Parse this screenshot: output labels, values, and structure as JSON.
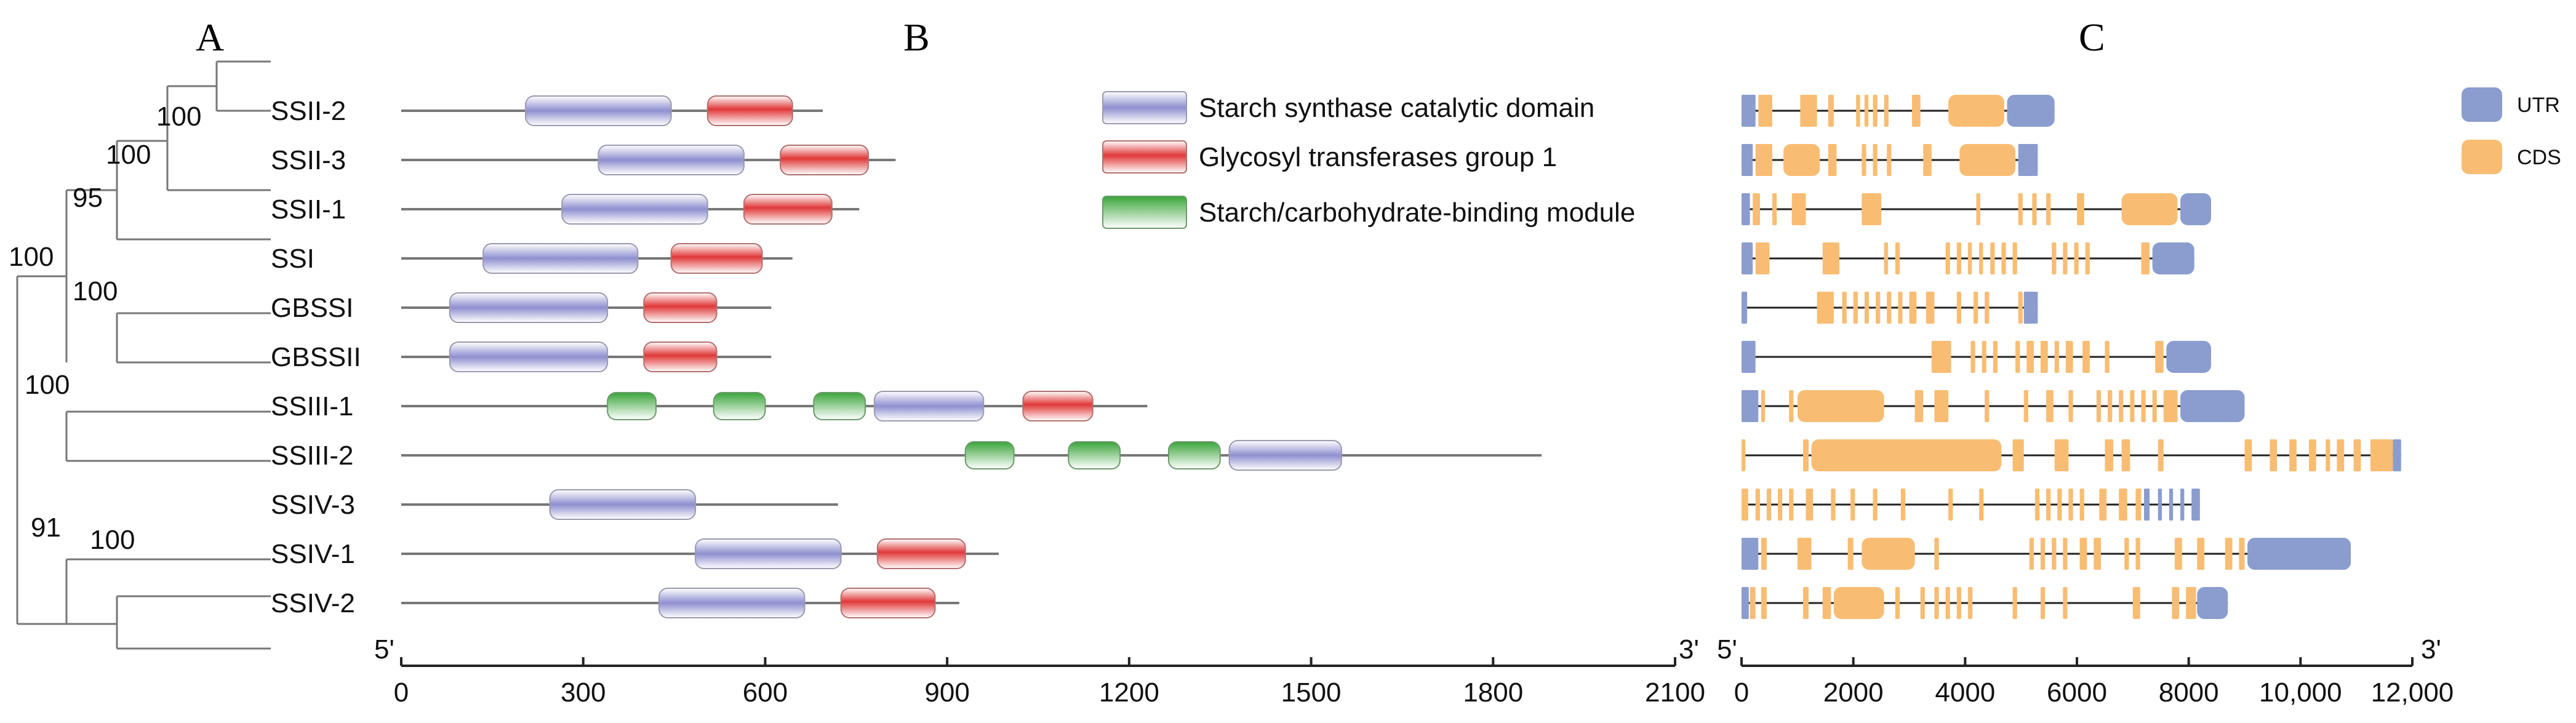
{
  "panels": {
    "a": "A",
    "b": "B",
    "c": "C"
  },
  "tree": {
    "bootstraps": [
      {
        "id": "ssii23",
        "value": "100"
      },
      {
        "id": "ssii",
        "value": "100"
      },
      {
        "id": "ss1",
        "value": "95"
      },
      {
        "id": "root",
        "value": "100"
      },
      {
        "id": "gbss",
        "value": "100"
      },
      {
        "id": "ssiii",
        "value": "100"
      },
      {
        "id": "ssiv",
        "value": "91"
      },
      {
        "id": "ssiv12",
        "value": "100"
      }
    ]
  },
  "genes": [
    "SSII-2",
    "SSII-3",
    "SSII-1",
    "SSI",
    "GBSSI",
    "GBSSII",
    "SSIII-1",
    "SSIII-2",
    "SSIV-3",
    "SSIV-1",
    "SSIV-2"
  ],
  "domains": {
    "axis": {
      "start_label": "5'",
      "end_label": "3'",
      "min": 0,
      "max": 2100,
      "ticks": [
        0,
        300,
        600,
        900,
        1200,
        1500,
        1800,
        2100
      ]
    },
    "legend": [
      {
        "key": "catalytic",
        "label": "Starch synthase catalytic domain",
        "color": "#8f8fd0"
      },
      {
        "key": "glycosyl",
        "label": "Glycosyl transferases group 1",
        "color": "#e03838"
      },
      {
        "key": "cbm",
        "label": "Starch/carbohydrate-binding module",
        "color": "#3aa43a"
      }
    ],
    "proteins": [
      {
        "gene": "SSII-2",
        "length": 695,
        "domains": [
          {
            "type": "catalytic",
            "start": 205,
            "end": 445
          },
          {
            "type": "glycosyl",
            "start": 505,
            "end": 645
          }
        ]
      },
      {
        "gene": "SSII-3",
        "length": 815,
        "domains": [
          {
            "type": "catalytic",
            "start": 325,
            "end": 565
          },
          {
            "type": "glycosyl",
            "start": 625,
            "end": 770
          }
        ]
      },
      {
        "gene": "SSII-1",
        "length": 755,
        "domains": [
          {
            "type": "catalytic",
            "start": 265,
            "end": 505
          },
          {
            "type": "glycosyl",
            "start": 565,
            "end": 710
          }
        ]
      },
      {
        "gene": "SSI",
        "length": 645,
        "domains": [
          {
            "type": "catalytic",
            "start": 135,
            "end": 390
          },
          {
            "type": "glycosyl",
            "start": 445,
            "end": 595
          }
        ]
      },
      {
        "gene": "GBSSI",
        "length": 610,
        "domains": [
          {
            "type": "catalytic",
            "start": 80,
            "end": 340
          },
          {
            "type": "glycosyl",
            "start": 400,
            "end": 520
          }
        ]
      },
      {
        "gene": "GBSSII",
        "length": 610,
        "domains": [
          {
            "type": "catalytic",
            "start": 80,
            "end": 340
          },
          {
            "type": "glycosyl",
            "start": 400,
            "end": 520
          }
        ]
      },
      {
        "gene": "SSIII-1",
        "length": 1230,
        "domains": [
          {
            "type": "cbm",
            "start": 340,
            "end": 420
          },
          {
            "type": "cbm",
            "start": 515,
            "end": 600
          },
          {
            "type": "cbm",
            "start": 680,
            "end": 765
          },
          {
            "type": "catalytic",
            "start": 780,
            "end": 960
          },
          {
            "type": "glycosyl",
            "start": 1025,
            "end": 1140
          }
        ]
      },
      {
        "gene": "SSIII-2",
        "length": 1880,
        "domains": [
          {
            "type": "cbm",
            "start": 930,
            "end": 1010
          },
          {
            "type": "cbm",
            "start": 1100,
            "end": 1185
          },
          {
            "type": "cbm",
            "start": 1265,
            "end": 1350
          },
          {
            "type": "catalytic",
            "start": 1365,
            "end": 1550
          }
        ]
      },
      {
        "gene": "SSIV-3",
        "length": 720,
        "domains": [
          {
            "type": "catalytic",
            "start": 245,
            "end": 485
          }
        ]
      },
      {
        "gene": "SSIV-1",
        "length": 985,
        "domains": [
          {
            "type": "catalytic",
            "start": 485,
            "end": 725
          },
          {
            "type": "glycosyl",
            "start": 785,
            "end": 930
          }
        ]
      },
      {
        "gene": "SSIV-2",
        "length": 920,
        "domains": [
          {
            "type": "catalytic",
            "start": 425,
            "end": 665
          },
          {
            "type": "glycosyl",
            "start": 725,
            "end": 880
          }
        ]
      }
    ]
  },
  "gene_structure": {
    "axis": {
      "start_label": "5'",
      "end_label": "3'",
      "min": 0,
      "max": 12000,
      "ticks": [
        0,
        2000,
        4000,
        6000,
        8000,
        10000,
        12000
      ],
      "tick_labels": [
        "0",
        "2000",
        "4000",
        "6000",
        "8000",
        "10,000",
        "12,000"
      ]
    },
    "legend": [
      {
        "key": "utr",
        "label": "UTR",
        "color": "#8b9dcf"
      },
      {
        "key": "cds",
        "label": "CDS",
        "color": "#f8bd73"
      }
    ],
    "genes": [
      {
        "gene": "SSII-2",
        "length": 5600,
        "utr": [
          [
            0,
            250
          ],
          [
            4750,
            5600
          ]
        ],
        "cds": [
          [
            300,
            550
          ],
          [
            1050,
            1350
          ],
          [
            1550,
            1650
          ],
          [
            2050,
            2120
          ],
          [
            2200,
            2270
          ],
          [
            2350,
            2430
          ],
          [
            2550,
            2630
          ],
          [
            3050,
            3200
          ],
          [
            3700,
            4700
          ]
        ]
      },
      {
        "gene": "SSII-3",
        "length": 5300,
        "utr": [
          [
            0,
            200
          ],
          [
            4950,
            5300
          ]
        ],
        "cds": [
          [
            250,
            550
          ],
          [
            750,
            1400
          ],
          [
            1550,
            1700
          ],
          [
            2150,
            2230
          ],
          [
            2350,
            2430
          ],
          [
            2600,
            2680
          ],
          [
            3250,
            3400
          ],
          [
            3900,
            4900
          ]
        ]
      },
      {
        "gene": "SSII-1",
        "length": 8400,
        "utr": [
          [
            0,
            150
          ],
          [
            7850,
            8400
          ]
        ],
        "cds": [
          [
            200,
            330
          ],
          [
            550,
            630
          ],
          [
            900,
            1150
          ],
          [
            2150,
            2500
          ],
          [
            4200,
            4270
          ],
          [
            4950,
            5030
          ],
          [
            5200,
            5280
          ],
          [
            5450,
            5530
          ],
          [
            6000,
            6130
          ],
          [
            6800,
            7800
          ]
        ]
      },
      {
        "gene": "SSI",
        "length": 8100,
        "utr": [
          [
            0,
            200
          ],
          [
            7350,
            8100
          ]
        ],
        "cds": [
          [
            250,
            500
          ],
          [
            1450,
            1750
          ],
          [
            2550,
            2620
          ],
          [
            2750,
            2830
          ],
          [
            3650,
            3730
          ],
          [
            3850,
            3930
          ],
          [
            4050,
            4120
          ],
          [
            4250,
            4320
          ],
          [
            4450,
            4530
          ],
          [
            4650,
            4730
          ],
          [
            4850,
            4930
          ],
          [
            5550,
            5630
          ],
          [
            5750,
            5830
          ],
          [
            5950,
            6030
          ],
          [
            6150,
            6230
          ],
          [
            7150,
            7300
          ]
        ]
      },
      {
        "gene": "GBSSI",
        "length": 5300,
        "utr": [
          [
            0,
            100
          ],
          [
            5050,
            5300
          ]
        ],
        "cds": [
          [
            1350,
            1650
          ],
          [
            1800,
            1880
          ],
          [
            2000,
            2080
          ],
          [
            2200,
            2280
          ],
          [
            2400,
            2480
          ],
          [
            2600,
            2680
          ],
          [
            2800,
            2880
          ],
          [
            3000,
            3130
          ],
          [
            3300,
            3450
          ],
          [
            3850,
            3930
          ],
          [
            4150,
            4230
          ],
          [
            4350,
            4430
          ],
          [
            4950,
            5030
          ]
        ]
      },
      {
        "gene": "GBSSII",
        "length": 8400,
        "utr": [
          [
            0,
            250
          ],
          [
            7600,
            8400
          ]
        ],
        "cds": [
          [
            3400,
            3750
          ],
          [
            4100,
            4180
          ],
          [
            4300,
            4380
          ],
          [
            4500,
            4580
          ],
          [
            4900,
            4980
          ],
          [
            5100,
            5230
          ],
          [
            5350,
            5480
          ],
          [
            5600,
            5680
          ],
          [
            5800,
            5930
          ],
          [
            6100,
            6230
          ],
          [
            6500,
            6580
          ],
          [
            7400,
            7550
          ]
        ]
      },
      {
        "gene": "SSIII-1",
        "length": 9000,
        "utr": [
          [
            0,
            300
          ],
          [
            7850,
            9000
          ]
        ],
        "cds": [
          [
            350,
            420
          ],
          [
            850,
            930
          ],
          [
            1000,
            2550
          ],
          [
            3100,
            3250
          ],
          [
            3450,
            3700
          ],
          [
            4350,
            4430
          ],
          [
            5050,
            5130
          ],
          [
            5450,
            5580
          ],
          [
            5850,
            5930
          ],
          [
            6350,
            6430
          ],
          [
            6550,
            6630
          ],
          [
            6750,
            6830
          ],
          [
            6950,
            7030
          ],
          [
            7150,
            7230
          ],
          [
            7350,
            7430
          ],
          [
            7550,
            7800
          ]
        ]
      },
      {
        "gene": "SSIII-2",
        "length": 11800,
        "utr": [
          [
            11650,
            11800
          ]
        ],
        "cds": [
          [
            0,
            70
          ],
          [
            1100,
            1200
          ],
          [
            1250,
            4650
          ],
          [
            4850,
            5050
          ],
          [
            5600,
            5850
          ],
          [
            6500,
            6650
          ],
          [
            6800,
            6950
          ],
          [
            7450,
            7550
          ],
          [
            9000,
            9130
          ],
          [
            9450,
            9580
          ],
          [
            9800,
            9930
          ],
          [
            10150,
            10280
          ],
          [
            10450,
            10530
          ],
          [
            10650,
            10780
          ],
          [
            10950,
            11080
          ],
          [
            11250,
            11650
          ]
        ]
      },
      {
        "gene": "SSIV-3",
        "length": 8200,
        "utr": [
          [
            7200,
            7300
          ],
          [
            7450,
            7520
          ],
          [
            7650,
            7720
          ],
          [
            7850,
            7920
          ],
          [
            8050,
            8200
          ]
        ],
        "cds": [
          [
            0,
            120
          ],
          [
            250,
            330
          ],
          [
            450,
            530
          ],
          [
            650,
            730
          ],
          [
            850,
            930
          ],
          [
            1150,
            1280
          ],
          [
            1600,
            1680
          ],
          [
            1950,
            2030
          ],
          [
            2350,
            2430
          ],
          [
            2850,
            2930
          ],
          [
            3700,
            3780
          ],
          [
            4250,
            4330
          ],
          [
            5250,
            5330
          ],
          [
            5450,
            5530
          ],
          [
            5650,
            5730
          ],
          [
            5850,
            5930
          ],
          [
            6050,
            6130
          ],
          [
            6400,
            6530
          ],
          [
            6750,
            6900
          ],
          [
            7050,
            7150
          ]
        ]
      },
      {
        "gene": "SSIV-1",
        "length": 10900,
        "utr": [
          [
            0,
            300
          ],
          [
            9050,
            10900
          ]
        ],
        "cds": [
          [
            350,
            450
          ],
          [
            1000,
            1250
          ],
          [
            1900,
            2000
          ],
          [
            2150,
            3100
          ],
          [
            3450,
            3530
          ],
          [
            5150,
            5230
          ],
          [
            5350,
            5430
          ],
          [
            5550,
            5630
          ],
          [
            5750,
            5830
          ],
          [
            6050,
            6180
          ],
          [
            6300,
            6430
          ],
          [
            6850,
            6930
          ],
          [
            7050,
            7130
          ],
          [
            7750,
            7880
          ],
          [
            8150,
            8280
          ],
          [
            8650,
            8780
          ],
          [
            8900,
            9000
          ]
        ]
      },
      {
        "gene": "SSIV-2",
        "length": 8700,
        "utr": [
          [
            0,
            130
          ],
          [
            8150,
            8700
          ]
        ],
        "cds": [
          [
            150,
            250
          ],
          [
            350,
            450
          ],
          [
            1100,
            1200
          ],
          [
            1450,
            1600
          ],
          [
            1650,
            2550
          ],
          [
            2750,
            2830
          ],
          [
            3200,
            3280
          ],
          [
            3450,
            3530
          ],
          [
            3650,
            3730
          ],
          [
            3850,
            3930
          ],
          [
            4050,
            4130
          ],
          [
            4850,
            4930
          ],
          [
            5350,
            5430
          ],
          [
            5750,
            5830
          ],
          [
            7000,
            7130
          ],
          [
            7700,
            7830
          ],
          [
            7950,
            8130
          ]
        ]
      }
    ]
  }
}
